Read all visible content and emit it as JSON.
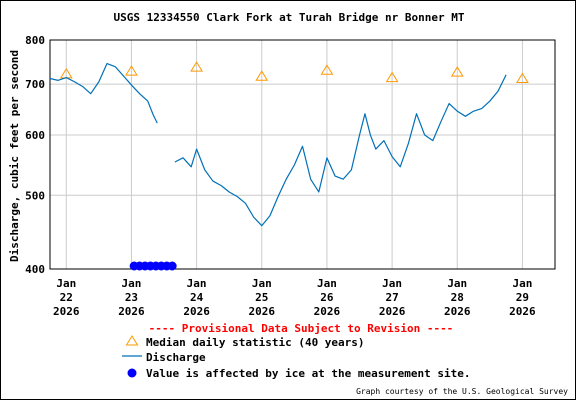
{
  "chart_data": {
    "type": "line",
    "title": "USGS 12334550 Clark Fork at Turah Bridge nr Bonner MT",
    "ylabel": "Discharge, cubic feet per second",
    "xlabel": "",
    "ylim": [
      400,
      800
    ],
    "yscale": "log",
    "grid": true,
    "yticks": [
      400,
      500,
      600,
      700,
      800
    ],
    "xlim": [
      "2026-01-21 18:00",
      "2026-01-29 12:00"
    ],
    "xticks": [
      {
        "date": "2026-01-22",
        "label_mon": "Jan",
        "label_day": "22",
        "label_year": "2026"
      },
      {
        "date": "2026-01-23",
        "label_mon": "Jan",
        "label_day": "23",
        "label_year": "2026"
      },
      {
        "date": "2026-01-24",
        "label_mon": "Jan",
        "label_day": "24",
        "label_year": "2026"
      },
      {
        "date": "2026-01-25",
        "label_mon": "Jan",
        "label_day": "25",
        "label_year": "2026"
      },
      {
        "date": "2026-01-26",
        "label_mon": "Jan",
        "label_day": "26",
        "label_year": "2026"
      },
      {
        "date": "2026-01-27",
        "label_mon": "Jan",
        "label_day": "27",
        "label_year": "2026"
      },
      {
        "date": "2026-01-28",
        "label_mon": "Jan",
        "label_day": "28",
        "label_year": "2026"
      },
      {
        "date": "2026-01-29",
        "label_mon": "Jan",
        "label_day": "29",
        "label_year": "2026"
      }
    ],
    "series": [
      {
        "name": "Median daily statistic (40 years)",
        "marker": "triangle",
        "color": "#ff9900",
        "points": [
          {
            "x": "2026-01-22 00:00",
            "y": 722
          },
          {
            "x": "2026-01-23 00:00",
            "y": 728
          },
          {
            "x": "2026-01-24 00:00",
            "y": 737
          },
          {
            "x": "2026-01-25 00:00",
            "y": 717
          },
          {
            "x": "2026-01-26 00:00",
            "y": 730
          },
          {
            "x": "2026-01-27 00:00",
            "y": 714
          },
          {
            "x": "2026-01-28 00:00",
            "y": 726
          },
          {
            "x": "2026-01-29 00:00",
            "y": 712
          }
        ]
      },
      {
        "name": "Discharge",
        "color": "#0070b8",
        "segments": [
          [
            {
              "x": "2026-01-21 18:00",
              "y": 712
            },
            {
              "x": "2026-01-21 21:00",
              "y": 708
            },
            {
              "x": "2026-01-22 00:00",
              "y": 714
            },
            {
              "x": "2026-01-22 03:00",
              "y": 705
            },
            {
              "x": "2026-01-22 06:00",
              "y": 695
            },
            {
              "x": "2026-01-22 09:00",
              "y": 680
            },
            {
              "x": "2026-01-22 12:00",
              "y": 705
            },
            {
              "x": "2026-01-22 15:00",
              "y": 745
            },
            {
              "x": "2026-01-22 18:00",
              "y": 738
            },
            {
              "x": "2026-01-22 21:00",
              "y": 718
            },
            {
              "x": "2026-01-23 00:00",
              "y": 698
            },
            {
              "x": "2026-01-23 03:00",
              "y": 680
            },
            {
              "x": "2026-01-23 06:00",
              "y": 665
            },
            {
              "x": "2026-01-23 08:00",
              "y": 638
            },
            {
              "x": "2026-01-23 09:30",
              "y": 622
            }
          ],
          [
            {
              "x": "2026-01-23 16:00",
              "y": 553
            },
            {
              "x": "2026-01-23 19:00",
              "y": 560
            },
            {
              "x": "2026-01-23 22:00",
              "y": 545
            },
            {
              "x": "2026-01-24 00:00",
              "y": 575
            },
            {
              "x": "2026-01-24 03:00",
              "y": 540
            },
            {
              "x": "2026-01-24 06:00",
              "y": 522
            },
            {
              "x": "2026-01-24 09:00",
              "y": 515
            },
            {
              "x": "2026-01-24 12:00",
              "y": 505
            },
            {
              "x": "2026-01-24 15:00",
              "y": 498
            },
            {
              "x": "2026-01-24 18:00",
              "y": 488
            },
            {
              "x": "2026-01-24 21:00",
              "y": 468
            },
            {
              "x": "2026-01-25 00:00",
              "y": 456
            },
            {
              "x": "2026-01-25 03:00",
              "y": 470
            },
            {
              "x": "2026-01-25 06:00",
              "y": 498
            },
            {
              "x": "2026-01-25 09:00",
              "y": 525
            },
            {
              "x": "2026-01-25 12:00",
              "y": 548
            },
            {
              "x": "2026-01-25 15:00",
              "y": 580
            },
            {
              "x": "2026-01-25 18:00",
              "y": 525
            },
            {
              "x": "2026-01-25 21:00",
              "y": 505
            },
            {
              "x": "2026-01-26 00:00",
              "y": 560
            },
            {
              "x": "2026-01-26 03:00",
              "y": 530
            },
            {
              "x": "2026-01-26 06:00",
              "y": 525
            },
            {
              "x": "2026-01-26 09:00",
              "y": 540
            },
            {
              "x": "2026-01-26 12:00",
              "y": 600
            },
            {
              "x": "2026-01-26 14:00",
              "y": 640
            },
            {
              "x": "2026-01-26 16:00",
              "y": 600
            },
            {
              "x": "2026-01-26 18:00",
              "y": 575
            },
            {
              "x": "2026-01-26 21:00",
              "y": 590
            },
            {
              "x": "2026-01-27 00:00",
              "y": 562
            },
            {
              "x": "2026-01-27 03:00",
              "y": 545
            },
            {
              "x": "2026-01-27 06:00",
              "y": 585
            },
            {
              "x": "2026-01-27 09:00",
              "y": 640
            },
            {
              "x": "2026-01-27 12:00",
              "y": 600
            },
            {
              "x": "2026-01-27 15:00",
              "y": 590
            },
            {
              "x": "2026-01-27 18:00",
              "y": 625
            },
            {
              "x": "2026-01-27 21:00",
              "y": 660
            },
            {
              "x": "2026-01-28 00:00",
              "y": 645
            },
            {
              "x": "2026-01-28 03:00",
              "y": 635
            },
            {
              "x": "2026-01-28 06:00",
              "y": 645
            },
            {
              "x": "2026-01-28 09:00",
              "y": 650
            },
            {
              "x": "2026-01-28 12:00",
              "y": 665
            },
            {
              "x": "2026-01-28 15:00",
              "y": 685
            },
            {
              "x": "2026-01-28 18:00",
              "y": 720
            }
          ]
        ]
      },
      {
        "name": "Value is affected by ice at the measurement site.",
        "marker": "dot",
        "color": "#0000ff",
        "points": [
          {
            "x": "2026-01-23 01:00",
            "y": 400
          },
          {
            "x": "2026-01-23 03:00",
            "y": 400
          },
          {
            "x": "2026-01-23 05:00",
            "y": 400
          },
          {
            "x": "2026-01-23 07:00",
            "y": 400
          },
          {
            "x": "2026-01-23 09:00",
            "y": 400
          },
          {
            "x": "2026-01-23 11:00",
            "y": 400
          },
          {
            "x": "2026-01-23 13:00",
            "y": 400
          },
          {
            "x": "2026-01-23 15:00",
            "y": 400
          }
        ]
      }
    ]
  },
  "notes": {
    "provisional": "---- Provisional Data Subject to Revision ----",
    "credit": "Graph courtesy of the U.S. Geological Survey"
  },
  "legend": {
    "median_label": "Median daily statistic (40 years)",
    "discharge_label": "Discharge",
    "ice_label": "Value is affected by ice at the measurement site."
  },
  "colors": {
    "median": "#ff9900",
    "discharge": "#0070b8",
    "ice": "#0000ff",
    "provisional": "#ff0000",
    "grid": "#cccccc"
  }
}
